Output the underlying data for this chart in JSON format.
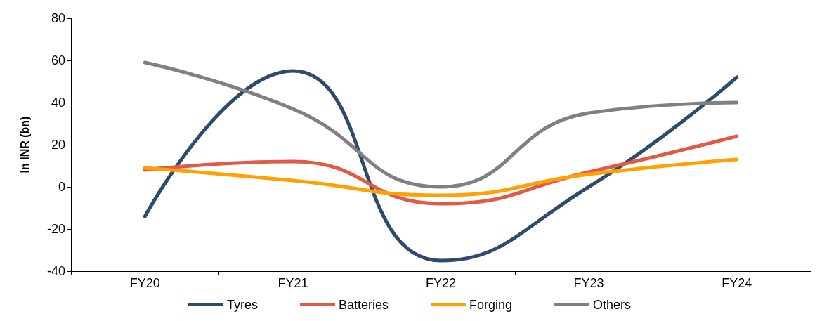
{
  "chart_data": {
    "type": "line",
    "ylabel": "In INR (bn)",
    "categories": [
      "FY20",
      "FY21",
      "FY22",
      "FY23",
      "FY24"
    ],
    "series": [
      {
        "name": "Tyres",
        "color": "#2f4b6c",
        "values": [
          -14,
          55,
          -35,
          0,
          52
        ]
      },
      {
        "name": "Batteries",
        "color": "#e05a47",
        "values": [
          8,
          12,
          -8,
          7,
          24
        ]
      },
      {
        "name": "Forging",
        "color": "#ffa200",
        "values": [
          9,
          3,
          -4,
          6,
          13
        ]
      },
      {
        "name": "Others",
        "color": "#808080",
        "values": [
          59,
          37,
          0,
          35,
          40
        ]
      }
    ],
    "ylim": [
      -40,
      80
    ],
    "yticks": [
      -40,
      -20,
      0,
      20,
      40,
      60,
      80
    ],
    "grid": false,
    "legend": "bottom",
    "marker": "none",
    "line_style": "solid"
  }
}
